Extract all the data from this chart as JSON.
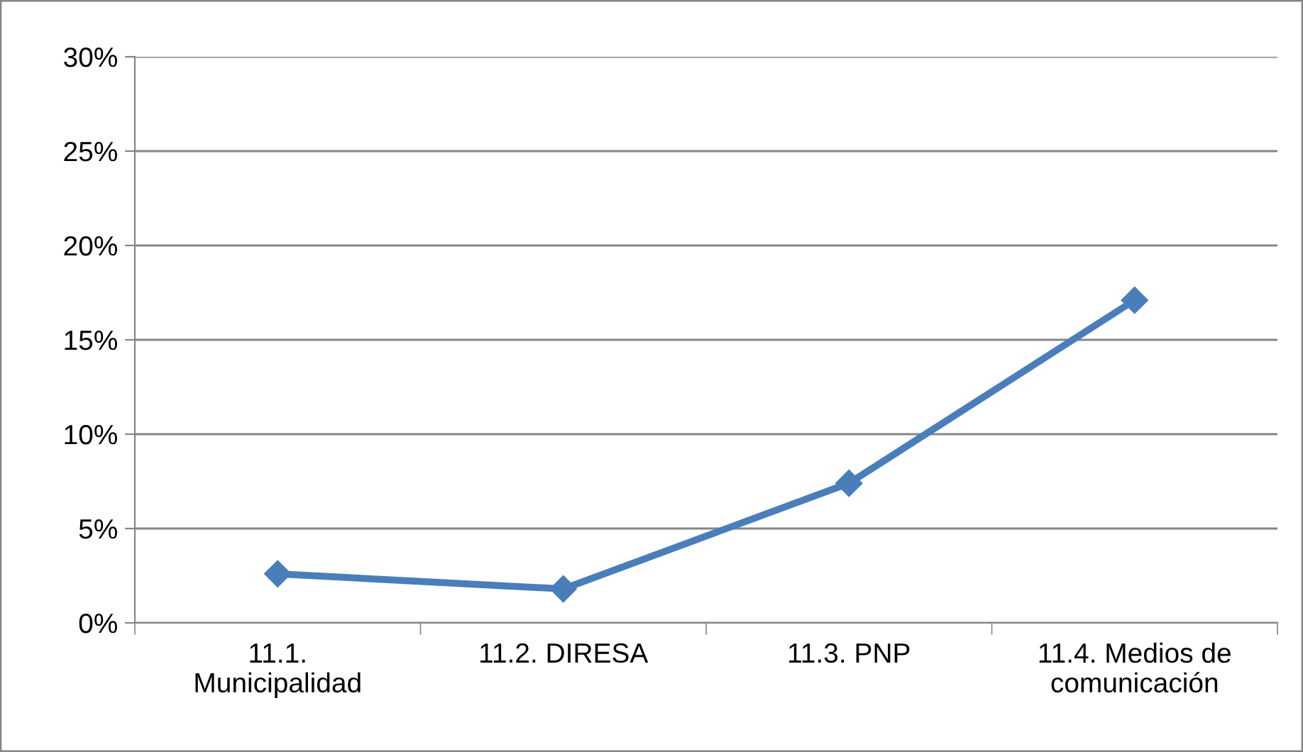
{
  "chart_data": {
    "type": "line",
    "categories": [
      "11.1. Municipalidad",
      "11.2. DIRESA",
      "11.3. PNP",
      "11.4. Medios de comunicación"
    ],
    "series": [
      {
        "color": "#4a7ebb",
        "values": [
          2.6,
          1.8,
          7.4,
          17.1
        ]
      }
    ],
    "ylim": [
      0,
      30
    ],
    "yticks": [
      {
        "value": 0,
        "label": "0%"
      },
      {
        "value": 5,
        "label": "5%"
      },
      {
        "value": 10,
        "label": "10%"
      },
      {
        "value": 15,
        "label": "15%"
      },
      {
        "value": 20,
        "label": "20%"
      },
      {
        "value": 25,
        "label": "25%"
      },
      {
        "value": 30,
        "label": "30%"
      }
    ],
    "grid": "y",
    "marker": "diamond",
    "line_style": "solid",
    "legend": false
  }
}
